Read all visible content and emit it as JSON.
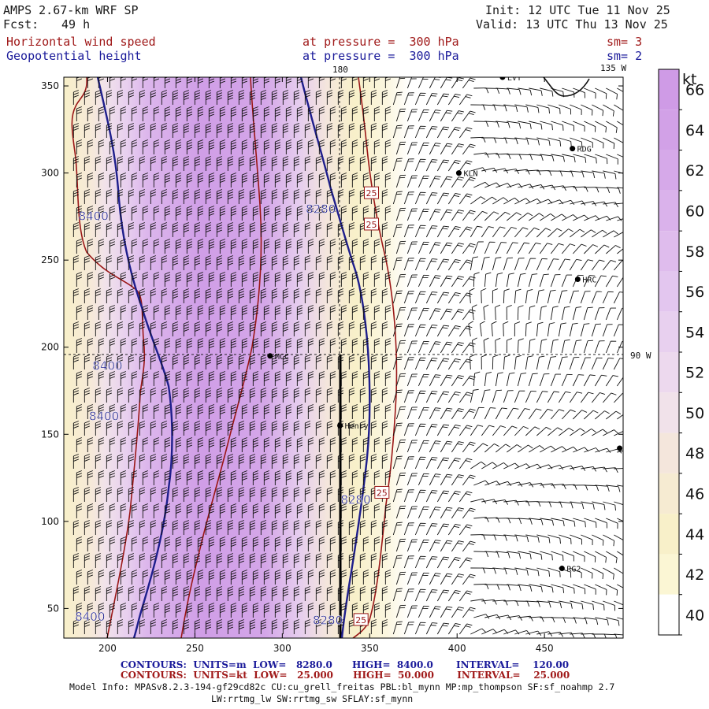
{
  "header": {
    "model": "AMPS 2.67-km WRF SP",
    "fcst_label": "Fcst:",
    "fcst_value": "49 h",
    "init": "Init: 12 UTC Tue 11 Nov 25",
    "valid": "Valid: 13 UTC Thu 13 Nov 25",
    "field1": "Horizontal wind speed",
    "field2": "Geopotential height",
    "level1": "at pressure =  300 hPa",
    "level2": "at pressure =  300 hPa",
    "sm1": "sm= 3",
    "sm2": "sm= 2"
  },
  "axes": {
    "x_ticks": [
      "200",
      "250",
      "300",
      "350",
      "400",
      "450"
    ],
    "x_values": [
      200,
      250,
      300,
      350,
      400,
      450
    ],
    "y_ticks": [
      "350",
      "300",
      "250",
      "200",
      "150",
      "100",
      "50"
    ],
    "y_values": [
      350,
      300,
      250,
      200,
      150,
      100,
      50
    ],
    "x_range": [
      175,
      495
    ],
    "y_range": [
      33,
      355
    ]
  },
  "grid_labels": {
    "lon_180": "180",
    "lon_135w": "135 W",
    "lon_90w": "90 W"
  },
  "colorbar": {
    "unit": "kt",
    "labels": [
      "66",
      "64",
      "62",
      "60",
      "58",
      "56",
      "54",
      "52",
      "50",
      "48",
      "46",
      "44",
      "42",
      "40"
    ],
    "values": [
      66,
      64,
      62,
      60,
      58,
      56,
      54,
      52,
      50,
      48,
      46,
      44,
      42,
      40
    ],
    "colors": [
      "#cf9be6",
      "#d2a1e7",
      "#d6a9e9",
      "#dab2eb",
      "#dfbced",
      "#e3c6ef",
      "#e8d0ef",
      "#edd9ee",
      "#f1e2ea",
      "#f4e6dc",
      "#f6ebd2",
      "#f8f0c9",
      "#fbf6d4",
      "#ffffff"
    ]
  },
  "stations": [
    {
      "name": "LVT",
      "x": 426,
      "y": 355
    },
    {
      "name": "RDG",
      "x": 466,
      "y": 314
    },
    {
      "name": "KLN",
      "x": 401,
      "y": 300
    },
    {
      "name": "HRC",
      "x": 469,
      "y": 239
    },
    {
      "name": "MCC",
      "x": 293,
      "y": 195
    },
    {
      "name": "Henry",
      "x": 333,
      "y": 155
    },
    {
      "name": "RG2",
      "x": 460,
      "y": 73
    },
    {
      "name": "",
      "x": 493,
      "y": 142
    }
  ],
  "contour_labels": {
    "height": [
      {
        "text": "8400",
        "x": 192,
        "y": 273
      },
      {
        "text": "8400",
        "x": 200,
        "y": 187
      },
      {
        "text": "8400",
        "x": 198,
        "y": 158
      },
      {
        "text": "8400",
        "x": 190,
        "y": 43
      },
      {
        "text": "8280",
        "x": 322,
        "y": 277
      },
      {
        "text": "8280",
        "x": 342,
        "y": 110
      },
      {
        "text": "8280",
        "x": 326,
        "y": 41
      }
    ],
    "speed": [
      {
        "text": "25",
        "x": 351,
        "y": 288
      },
      {
        "text": "25",
        "x": 351,
        "y": 270
      },
      {
        "text": "25",
        "x": 357,
        "y": 116
      },
      {
        "text": "25",
        "x": 345,
        "y": 43
      }
    ]
  },
  "footer": {
    "contours_height": "CONTOURS:  UNITS=m  LOW=   8280.0      HIGH=  8400.0       INTERVAL=    120.00",
    "contours_speed": "CONTOURS:  UNITS=kt  LOW=   25.000      HIGH=  50.000       INTERVAL=    25.000",
    "model_info": "Model Info: MPASv8.2.3-194-gf29cd82c CU:cu_grell_freitas PBL:bl_mynn MP:mp_thompson SF:sf_noahmp 2.7",
    "model_info2": "LW:rrtmg_lw SW:rrtmg_sw SFLAY:sf_mynn"
  }
}
